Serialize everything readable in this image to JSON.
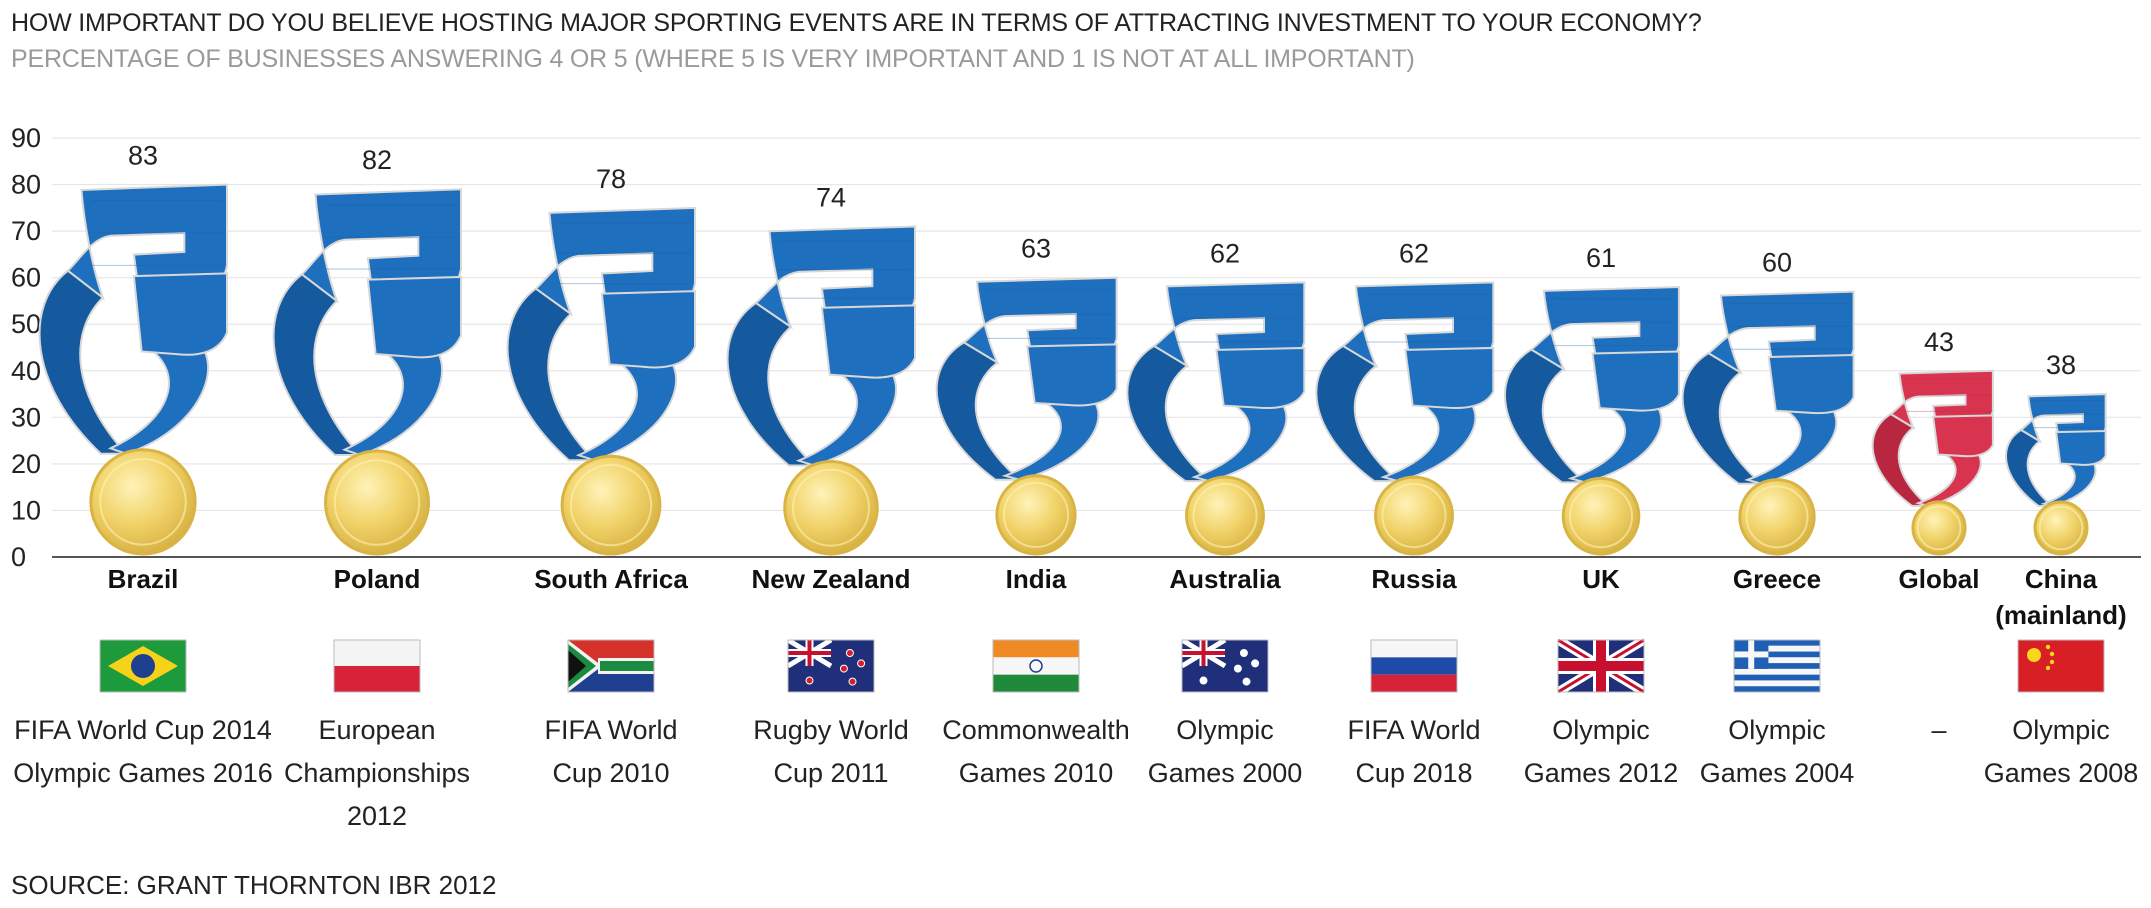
{
  "title": "HOW IMPORTANT DO YOU BELIEVE HOSTING MAJOR SPORTING EVENTS ARE IN TERMS OF ATTRACTING INVESTMENT TO YOUR ECONOMY?",
  "subtitle": "PERCENTAGE OF BUSINESSES ANSWERING 4 OR 5 (WHERE 5 IS VERY IMPORTANT AND 1 IS NOT AT ALL IMPORTANT)",
  "source": "SOURCE: GRANT THORNTON IBR 2012",
  "colors": {
    "ribbon_blue": "#1f6fbf",
    "ribbon_blue_dark": "#155a9e",
    "ribbon_red": "#d9344f",
    "ribbon_red_dark": "#b82640",
    "medal_gold": "#f1d36a",
    "medal_gold_edge": "#d9b445",
    "grid": "#e6e6e6",
    "axis": "#555555"
  },
  "chart_data": {
    "type": "bar",
    "title": "HOW IMPORTANT DO YOU BELIEVE HOSTING MAJOR SPORTING EVENTS ARE IN TERMS OF ATTRACTING INVESTMENT TO YOUR ECONOMY?",
    "subtitle": "PERCENTAGE OF BUSINESSES ANSWERING 4 OR 5 (WHERE 5 IS VERY IMPORTANT AND 1 IS NOT AT ALL IMPORTANT)",
    "ylim": [
      0,
      90
    ],
    "yticks": [
      "0",
      "10",
      "20",
      "30",
      "40",
      "50",
      "60",
      "70",
      "80",
      "90"
    ],
    "grid": true,
    "categories": [
      {
        "name": "Brazil",
        "value": 83,
        "event_lines": [
          "FIFA World Cup 2014",
          "Olympic Games 2016"
        ],
        "flag": "brazil-flag",
        "highlight": false
      },
      {
        "name": "Poland",
        "value": 82,
        "event_lines": [
          "European",
          "Championships",
          "2012"
        ],
        "flag": "poland-flag",
        "highlight": false
      },
      {
        "name": "South Africa",
        "value": 78,
        "event_lines": [
          "FIFA World",
          "Cup 2010"
        ],
        "flag": "south-africa-flag",
        "highlight": false
      },
      {
        "name": "New Zealand",
        "value": 74,
        "event_lines": [
          "Rugby World",
          "Cup 2011"
        ],
        "flag": "new-zealand-flag",
        "highlight": false
      },
      {
        "name": "India",
        "value": 63,
        "event_lines": [
          "Commonwealth",
          "Games 2010"
        ],
        "flag": "india-flag",
        "highlight": false
      },
      {
        "name": "Australia",
        "value": 62,
        "event_lines": [
          "Olympic",
          "Games 2000"
        ],
        "flag": "australia-flag",
        "highlight": false
      },
      {
        "name": "Russia",
        "value": 62,
        "event_lines": [
          "FIFA World",
          "Cup 2018"
        ],
        "flag": "russia-flag",
        "highlight": false
      },
      {
        "name": "UK",
        "value": 61,
        "event_lines": [
          "Olympic",
          "Games 2012"
        ],
        "flag": "uk-flag",
        "highlight": false
      },
      {
        "name": "Greece",
        "value": 60,
        "event_lines": [
          "Olympic",
          "Games 2004"
        ],
        "flag": "greece-flag",
        "highlight": false
      },
      {
        "name": "Global",
        "value": 43,
        "event_lines": [
          "–"
        ],
        "flag": "",
        "highlight": true
      },
      {
        "name": "China (mainland)",
        "name_lines": [
          "China",
          "(mainland)"
        ],
        "value": 38,
        "event_lines": [
          "Olympic",
          "Games 2008"
        ],
        "flag": "china-flag",
        "highlight": false
      }
    ]
  }
}
